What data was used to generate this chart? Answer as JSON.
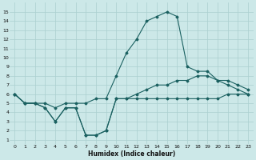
{
  "xlabel": "Humidex (Indice chaleur)",
  "bg_color": "#cce8e8",
  "grid_color": "#aacfcf",
  "line_color": "#1a6060",
  "x_ticks": [
    0,
    1,
    2,
    3,
    4,
    5,
    6,
    7,
    8,
    9,
    10,
    11,
    12,
    13,
    14,
    15,
    16,
    17,
    18,
    19,
    20,
    21,
    22,
    23
  ],
  "y_ticks": [
    1,
    2,
    3,
    4,
    5,
    6,
    7,
    8,
    9,
    10,
    11,
    12,
    13,
    14,
    15
  ],
  "ylim": [
    0.5,
    16.0
  ],
  "xlim": [
    -0.5,
    23.5
  ],
  "line1_x": [
    0,
    1,
    2,
    3,
    4,
    5,
    6,
    7,
    8,
    9,
    10,
    11,
    12,
    13,
    14,
    15,
    16,
    17,
    18,
    19,
    20,
    21,
    22,
    23
  ],
  "line1_y": [
    6.0,
    5.0,
    5.0,
    5.0,
    4.5,
    5.0,
    5.0,
    5.0,
    5.5,
    5.5,
    8.0,
    10.5,
    12.0,
    14.0,
    14.5,
    15.0,
    14.5,
    9.0,
    8.5,
    8.5,
    7.5,
    7.0,
    6.5,
    6.0
  ],
  "line2_x": [
    0,
    1,
    2,
    3,
    4,
    5,
    6,
    7,
    8,
    9,
    10,
    11,
    12,
    13,
    14,
    15,
    16,
    17,
    18,
    19,
    20,
    21,
    22,
    23
  ],
  "line2_y": [
    6.0,
    5.0,
    5.0,
    4.5,
    3.0,
    4.5,
    4.5,
    1.5,
    1.5,
    2.0,
    5.5,
    5.5,
    5.5,
    5.5,
    5.5,
    5.5,
    5.5,
    5.5,
    5.5,
    5.5,
    5.5,
    6.0,
    6.0,
    6.0
  ],
  "line3_x": [
    0,
    1,
    2,
    3,
    4,
    5,
    6,
    7,
    8,
    9,
    10,
    11,
    12,
    13,
    14,
    15,
    16,
    17,
    18,
    19,
    20,
    21,
    22,
    23
  ],
  "line3_y": [
    6.0,
    5.0,
    5.0,
    4.5,
    3.0,
    4.5,
    4.5,
    1.5,
    1.5,
    2.0,
    5.5,
    5.5,
    6.0,
    6.5,
    7.0,
    7.0,
    7.5,
    7.5,
    8.0,
    8.0,
    7.5,
    7.5,
    7.0,
    6.5
  ]
}
